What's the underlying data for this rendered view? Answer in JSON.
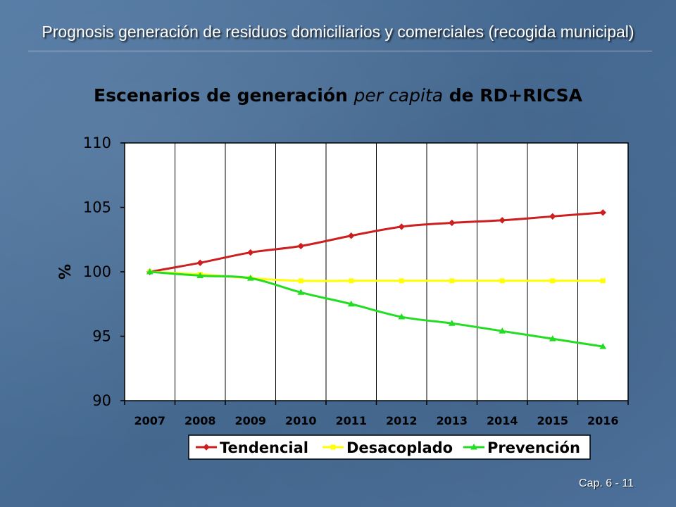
{
  "slide": {
    "title": "Prognosis generación de residuos domiciliarios y comerciales (recogida municipal)",
    "footer": "Cap. 6 - 11"
  },
  "colors": {
    "Tendencial": "#cc1f1f",
    "Desacoplado": "#ffff00",
    "Prevención": "#22dd22"
  },
  "chart_data": {
    "type": "line",
    "title_parts": [
      "Escenarios de generación ",
      "per capita",
      " de RD+RICSA"
    ],
    "xlabel": "",
    "ylabel": "%",
    "categories": [
      "2007",
      "2008",
      "2009",
      "2010",
      "2011",
      "2012",
      "2013",
      "2014",
      "2015",
      "2016"
    ],
    "ylim": [
      90,
      110
    ],
    "yticks": [
      "110",
      "105",
      "100",
      "95",
      "90"
    ],
    "grid": true,
    "legend_position": "bottom",
    "series": [
      {
        "name": "Tendencial",
        "marker": "diamond",
        "values": [
          100.0,
          100.7,
          101.5,
          102.0,
          102.8,
          103.5,
          103.8,
          104.0,
          104.3,
          104.6
        ]
      },
      {
        "name": "Desacoplado",
        "marker": "square",
        "values": [
          100.0,
          99.8,
          99.5,
          99.3,
          99.3,
          99.3,
          99.3,
          99.3,
          99.3,
          99.3
        ]
      },
      {
        "name": "Prevención",
        "marker": "triangle",
        "values": [
          100.0,
          99.7,
          99.5,
          98.4,
          97.5,
          96.5,
          96.0,
          95.4,
          94.8,
          94.2
        ]
      }
    ]
  }
}
